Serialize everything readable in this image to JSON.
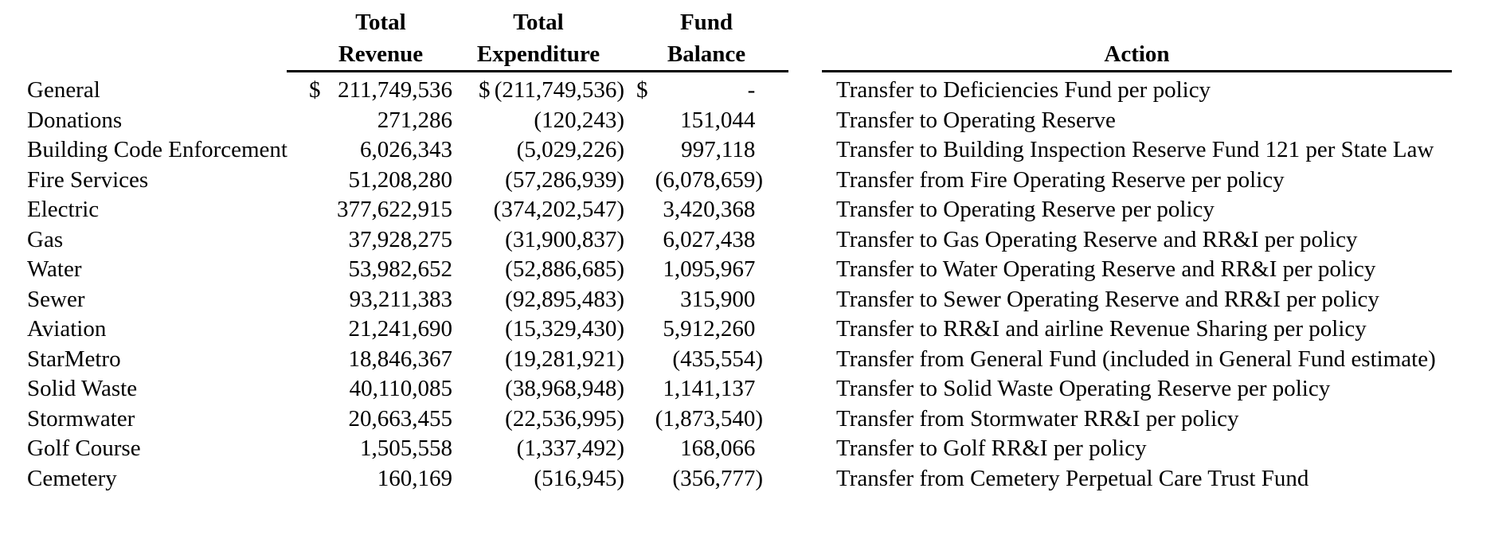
{
  "table": {
    "headers": {
      "revenue1": "Total",
      "revenue2": "Revenue",
      "expenditure1": "Total",
      "expenditure2": "Expenditure",
      "balance1": "Fund",
      "balance2": "Balance",
      "action": "Action"
    },
    "rows": [
      {
        "fund": "General",
        "rev_cur": "$",
        "rev": "211,749,536",
        "exp_cur": "$",
        "exp": "(211,749,536)",
        "bal_cur": "$",
        "bal": "-",
        "action": "Transfer to Deficiencies Fund per policy"
      },
      {
        "fund": "Donations",
        "rev_cur": "",
        "rev": "271,286",
        "exp_cur": "",
        "exp": "(120,243)",
        "bal_cur": "",
        "bal": "151,044",
        "action": "Transfer to Operating Reserve"
      },
      {
        "fund": "Building Code Enforcement",
        "rev_cur": "",
        "rev": "6,026,343",
        "exp_cur": "",
        "exp": "(5,029,226)",
        "bal_cur": "",
        "bal": "997,118",
        "action": "Transfer to Building Inspection Reserve Fund 121 per State Law"
      },
      {
        "fund": "Fire Services",
        "rev_cur": "",
        "rev": "51,208,280",
        "exp_cur": "",
        "exp": "(57,286,939)",
        "bal_cur": "",
        "bal": "(6,078,659)",
        "action": "Transfer from Fire Operating Reserve per policy"
      },
      {
        "fund": "Electric",
        "rev_cur": "",
        "rev": "377,622,915",
        "exp_cur": "",
        "exp": "(374,202,547)",
        "bal_cur": "",
        "bal": "3,420,368",
        "action": "Transfer to Operating Reserve per policy"
      },
      {
        "fund": "Gas",
        "rev_cur": "",
        "rev": "37,928,275",
        "exp_cur": "",
        "exp": "(31,900,837)",
        "bal_cur": "",
        "bal": "6,027,438",
        "action": "Transfer to Gas Operating Reserve and RR&I per policy"
      },
      {
        "fund": "Water",
        "rev_cur": "",
        "rev": "53,982,652",
        "exp_cur": "",
        "exp": "(52,886,685)",
        "bal_cur": "",
        "bal": "1,095,967",
        "action": "Transfer to Water Operating Reserve and RR&I per policy"
      },
      {
        "fund": "Sewer",
        "rev_cur": "",
        "rev": "93,211,383",
        "exp_cur": "",
        "exp": "(92,895,483)",
        "bal_cur": "",
        "bal": "315,900",
        "action": "Transfer to Sewer Operating Reserve and RR&I per policy"
      },
      {
        "fund": "Aviation",
        "rev_cur": "",
        "rev": "21,241,690",
        "exp_cur": "",
        "exp": "(15,329,430)",
        "bal_cur": "",
        "bal": "5,912,260",
        "action": "Transfer to RR&I and airline Revenue Sharing per policy"
      },
      {
        "fund": "StarMetro",
        "rev_cur": "",
        "rev": "18,846,367",
        "exp_cur": "",
        "exp": "(19,281,921)",
        "bal_cur": "",
        "bal": "(435,554)",
        "action": "Transfer from General Fund (included in General Fund estimate)"
      },
      {
        "fund": "Solid Waste",
        "rev_cur": "",
        "rev": "40,110,085",
        "exp_cur": "",
        "exp": "(38,968,948)",
        "bal_cur": "",
        "bal": "1,141,137",
        "action": "Transfer to Solid Waste Operating Reserve per policy"
      },
      {
        "fund": "Stormwater",
        "rev_cur": "",
        "rev": "20,663,455",
        "exp_cur": "",
        "exp": "(22,536,995)",
        "bal_cur": "",
        "bal": "(1,873,540)",
        "action": "Transfer from Stormwater RR&I per policy"
      },
      {
        "fund": "Golf Course",
        "rev_cur": "",
        "rev": "1,505,558",
        "exp_cur": "",
        "exp": "(1,337,492)",
        "bal_cur": "",
        "bal": "168,066",
        "action": "Transfer to Golf RR&I per policy"
      },
      {
        "fund": "Cemetery",
        "rev_cur": "",
        "rev": "160,169",
        "exp_cur": "",
        "exp": "(516,945)",
        "bal_cur": "",
        "bal": "(356,777)",
        "action": "Transfer from Cemetery Perpetual Care Trust Fund"
      }
    ]
  },
  "colors": {
    "background": "#ffffff",
    "text": "#000000",
    "rule": "#000000"
  }
}
